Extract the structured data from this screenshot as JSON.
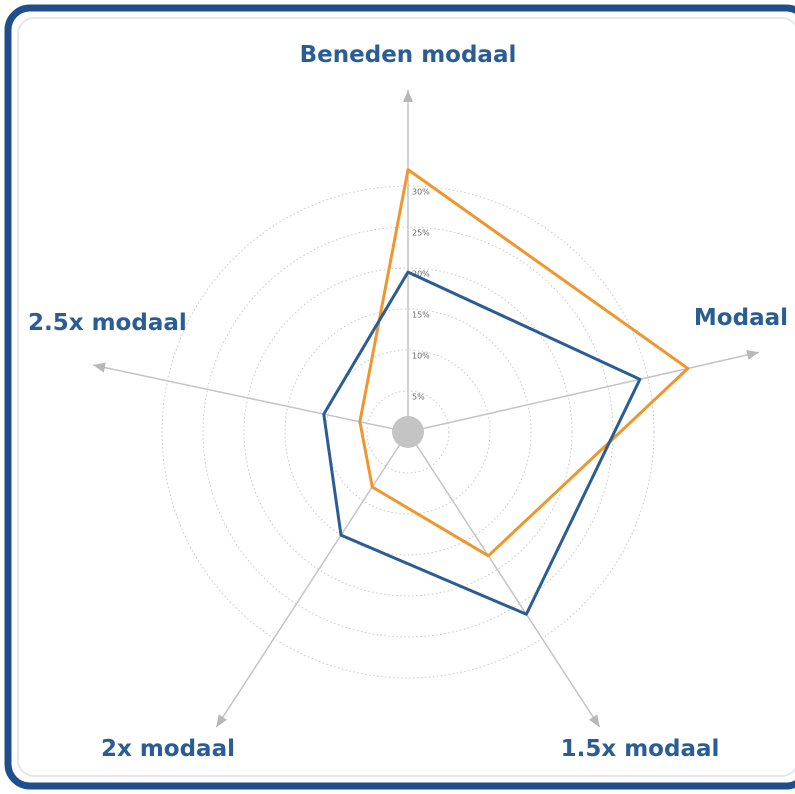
{
  "chart_data": {
    "type": "radar",
    "categories": [
      "Beneden modaal",
      "Modaal",
      "1.5x modaal",
      "2x modaal",
      "2.5x modaal"
    ],
    "series": [
      {
        "color": "#f0962e",
        "values": [
          32,
          35,
          18,
          8,
          6
        ]
      },
      {
        "color": "#2a5d94",
        "values": [
          19.5,
          29,
          26.5,
          15,
          10.5
        ]
      }
    ],
    "rlim": [
      0,
      30
    ],
    "rticks": [
      {
        "value": 5,
        "label": "5%"
      },
      {
        "value": 10,
        "label": "10%"
      },
      {
        "value": 15,
        "label": "15%"
      },
      {
        "value": 20,
        "label": "20%"
      },
      {
        "value": 25,
        "label": "25%"
      },
      {
        "value": 30,
        "label": "30%"
      }
    ]
  }
}
